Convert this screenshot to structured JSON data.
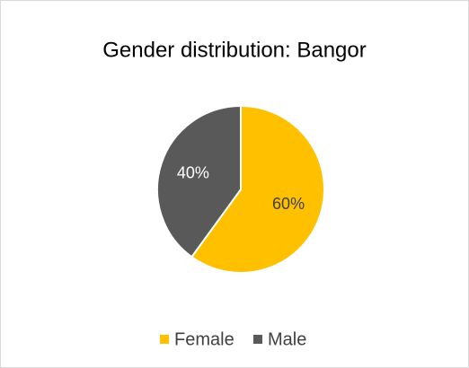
{
  "chart_data": {
    "type": "pie",
    "title": "Gender distribution: Bangor",
    "categories": [
      "Female",
      "Male"
    ],
    "values": [
      60,
      40
    ],
    "value_labels": [
      "60%",
      "40%"
    ],
    "colors": [
      "#ffc000",
      "#595959"
    ],
    "label_colors": [
      "#404040",
      "#ffffff"
    ],
    "legend": "bottom"
  }
}
